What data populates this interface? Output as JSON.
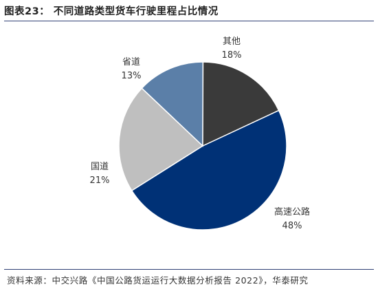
{
  "title": "图表23：   不同道路类型货车行驶里程占比情况",
  "source": "资料来源：中交兴路《中国公路货运运行大数据分析报告 2022》，华泰研究",
  "chart_data": {
    "type": "pie",
    "slices": [
      {
        "label": "高速公路",
        "value": 48,
        "value_text": "48%",
        "color": "#003176"
      },
      {
        "label": "国道",
        "value": 21,
        "value_text": "21%",
        "color": "#bfbfbf"
      },
      {
        "label": "省道",
        "value": 13,
        "value_text": "13%",
        "color": "#5b7fa8"
      },
      {
        "label": "其他",
        "value": 18,
        "value_text": "18%",
        "color": "#3a3a3a"
      }
    ]
  }
}
